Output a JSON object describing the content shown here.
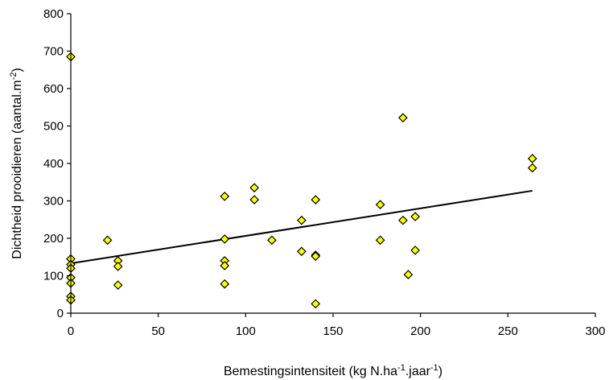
{
  "chart_data": {
    "type": "scatter",
    "xlabel": {
      "parts": [
        "Bemestingsintensiteit (kg N.ha",
        "-1",
        ".jaar",
        "-1",
        ")"
      ]
    },
    "ylabel": {
      "parts": [
        "Dichtheid prooidieren (aantal.m",
        "-2",
        ")"
      ]
    },
    "xlim": [
      0,
      300
    ],
    "ylim": [
      0,
      800
    ],
    "x_ticks": [
      0,
      50,
      100,
      150,
      200,
      250,
      300
    ],
    "y_ticks": [
      0,
      100,
      200,
      300,
      400,
      500,
      600,
      700,
      800
    ],
    "grid": false,
    "marker": "diamond",
    "marker_color": "#ffff00",
    "marker_edge": "#000000",
    "points": [
      {
        "x": 0,
        "y": 685
      },
      {
        "x": 0,
        "y": 145
      },
      {
        "x": 0,
        "y": 130
      },
      {
        "x": 0,
        "y": 120
      },
      {
        "x": 0,
        "y": 95
      },
      {
        "x": 0,
        "y": 80
      },
      {
        "x": 0,
        "y": 45
      },
      {
        "x": 0,
        "y": 35
      },
      {
        "x": 21,
        "y": 195
      },
      {
        "x": 27,
        "y": 140
      },
      {
        "x": 27,
        "y": 125
      },
      {
        "x": 27,
        "y": 75
      },
      {
        "x": 88,
        "y": 312
      },
      {
        "x": 88,
        "y": 198
      },
      {
        "x": 88,
        "y": 140
      },
      {
        "x": 88,
        "y": 127
      },
      {
        "x": 88,
        "y": 78
      },
      {
        "x": 105,
        "y": 335
      },
      {
        "x": 105,
        "y": 303
      },
      {
        "x": 115,
        "y": 195
      },
      {
        "x": 132,
        "y": 248
      },
      {
        "x": 132,
        "y": 165
      },
      {
        "x": 140,
        "y": 303
      },
      {
        "x": 140,
        "y": 155
      },
      {
        "x": 140,
        "y": 152
      },
      {
        "x": 140,
        "y": 25
      },
      {
        "x": 177,
        "y": 290
      },
      {
        "x": 177,
        "y": 195
      },
      {
        "x": 190,
        "y": 522
      },
      {
        "x": 190,
        "y": 248
      },
      {
        "x": 193,
        "y": 103
      },
      {
        "x": 197,
        "y": 258
      },
      {
        "x": 197,
        "y": 168
      },
      {
        "x": 264,
        "y": 413
      },
      {
        "x": 264,
        "y": 388
      }
    ],
    "trendline": {
      "x": [
        0,
        264
      ],
      "y": [
        133,
        327
      ],
      "color": "#000000"
    }
  }
}
